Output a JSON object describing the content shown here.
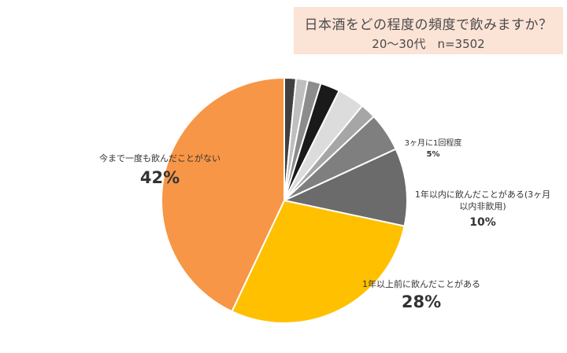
{
  "title": {
    "line1": "日本酒をどの程度の頻度で飲みますか？",
    "line2": "20〜30代　n=3502"
  },
  "chart_data": {
    "type": "pie",
    "start": "12 o'clock",
    "direction": "clockwise",
    "slices": [
      {
        "label": "",
        "value": 1.5,
        "color": "#404040"
      },
      {
        "label": "",
        "value": 1.5,
        "color": "#bfbfbf"
      },
      {
        "label": "",
        "value": 1.7,
        "color": "#8c8c8c"
      },
      {
        "label": "",
        "value": 2.5,
        "color": "#1a1a1a"
      },
      {
        "label": "",
        "value": 3.5,
        "color": "#dcdcdc"
      },
      {
        "label": "",
        "value": 2.0,
        "color": "#a6a6a6"
      },
      {
        "label": "3ヶ月に1回程度",
        "value": 5,
        "display": "5%",
        "color": "#7f7f7f"
      },
      {
        "label": "1年以内に飲んだことがある(3ヶ月以内非飲用)",
        "label_line1": "1年以内に飲んだことがある(3ヶ月",
        "label_line2": "以内非飲用)",
        "value": 10,
        "display": "10%",
        "color": "#6b6b6b"
      },
      {
        "label": "1年以上前に飲んだことがある",
        "value": 28,
        "display": "28%",
        "color": "#ffc000"
      },
      {
        "label": "今まで一度も飲んだことがない",
        "value": 42,
        "display": "42%",
        "color": "#f79646"
      }
    ]
  }
}
